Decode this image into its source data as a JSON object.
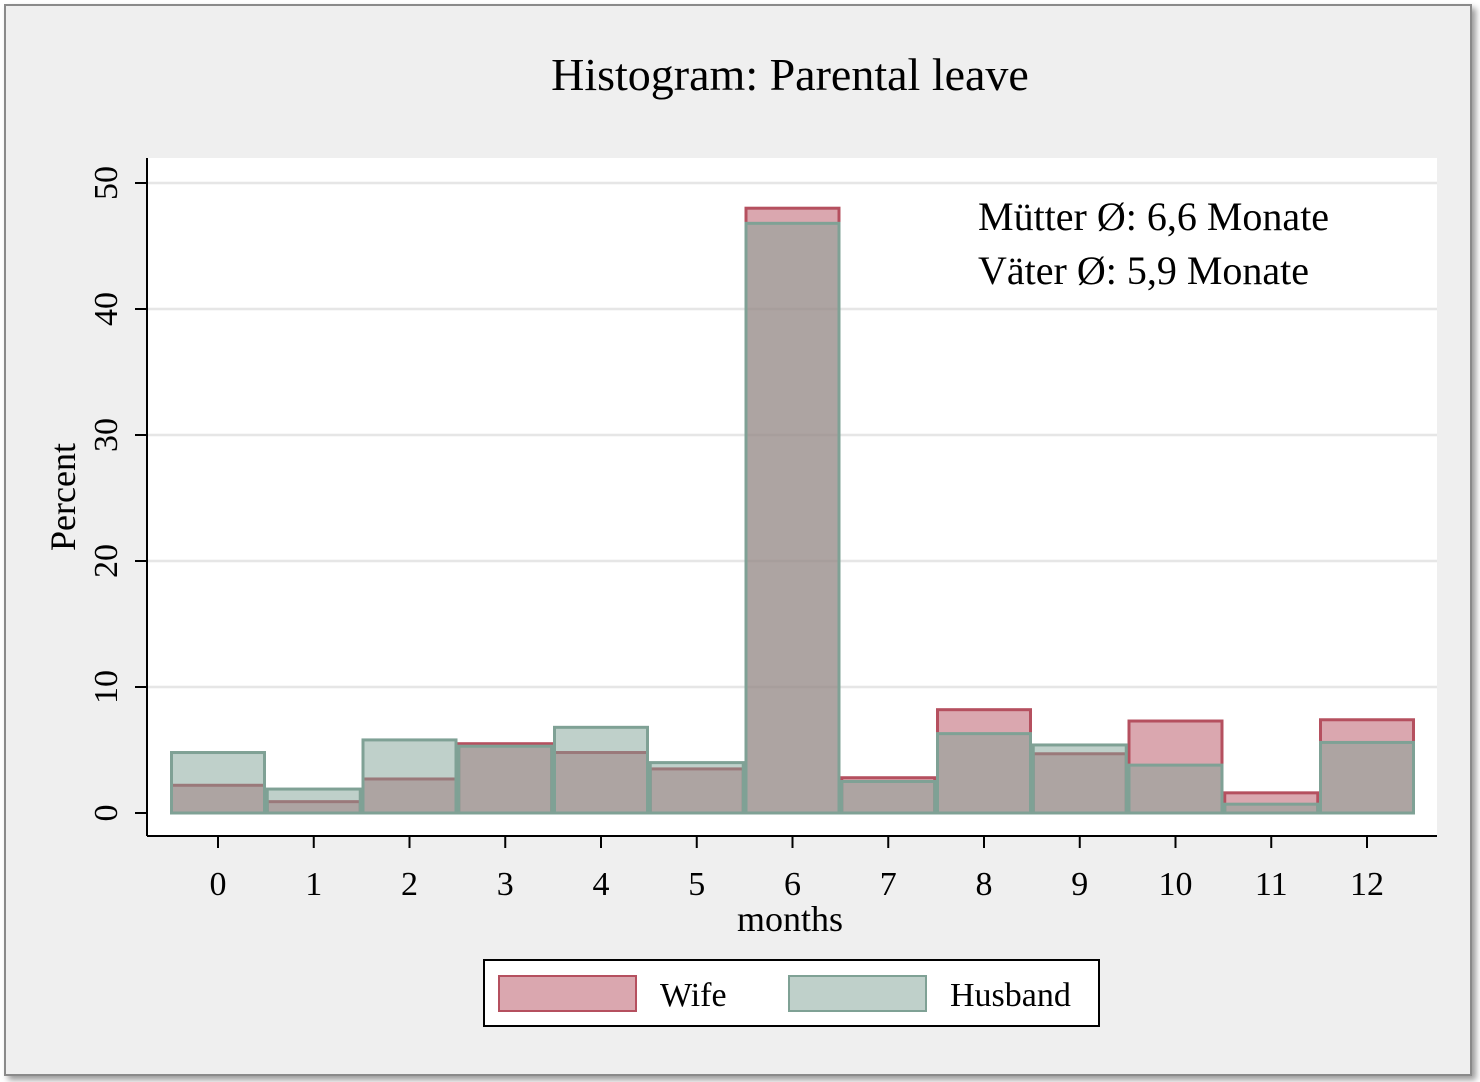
{
  "chart_data": {
    "type": "bar",
    "title": "Histogram: Parental leave",
    "xlabel": "months",
    "ylabel": "Percent",
    "ylim": [
      0,
      50
    ],
    "yticks": [
      0,
      10,
      20,
      30,
      40,
      50
    ],
    "categories": [
      "0",
      "1",
      "2",
      "3",
      "4",
      "5",
      "6",
      "7",
      "8",
      "9",
      "10",
      "11",
      "12"
    ],
    "grid": true,
    "legend_position": "bottom",
    "series": [
      {
        "name": "Wife",
        "color": "#b5505f",
        "values": [
          2.2,
          0.9,
          2.7,
          5.5,
          4.8,
          3.5,
          48.0,
          2.8,
          8.2,
          4.7,
          7.3,
          1.6,
          7.4
        ]
      },
      {
        "name": "Husband",
        "color": "#7fa195",
        "values": [
          4.8,
          1.9,
          5.8,
          5.3,
          6.8,
          4.0,
          46.8,
          2.5,
          6.3,
          5.4,
          3.8,
          0.7,
          5.6
        ]
      }
    ],
    "annotations": [
      "Mütter Ø: 6,6 Monate",
      "Väter Ø: 5,9 Monate"
    ]
  }
}
